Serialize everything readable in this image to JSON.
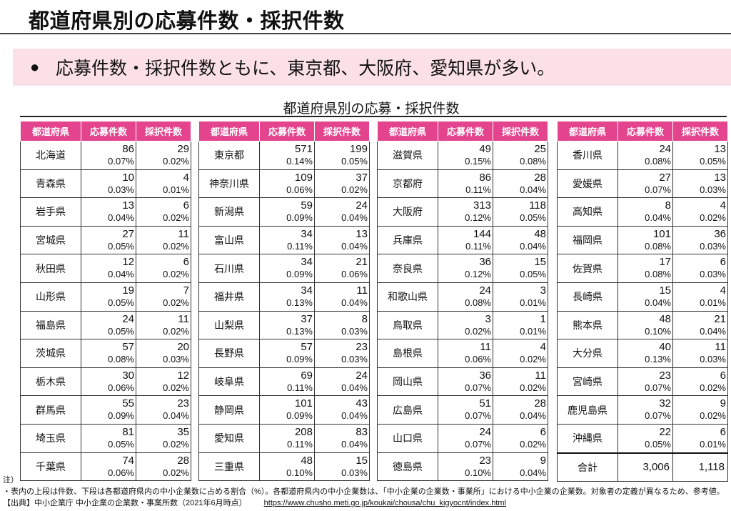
{
  "title": "都道府県別の応募件数・採択件数",
  "banner": {
    "bullet": "●",
    "text": "応募件数・採択件数ともに、東京都、大阪府、愛知県が多い。"
  },
  "subtitle": "都道府県別の応募・採択件数",
  "colors": {
    "header": "#e4448d",
    "banner": "#fbe1e7"
  },
  "headers": [
    "都道府県",
    "応募件数",
    "採択件数"
  ],
  "tables": [
    {
      "rows": [
        {
          "pref": "北海道",
          "apps": "86",
          "apps_pct": "0.07%",
          "adopted": "29",
          "adopted_pct": "0.02%"
        },
        {
          "pref": "青森県",
          "apps": "10",
          "apps_pct": "0.03%",
          "adopted": "4",
          "adopted_pct": "0.01%"
        },
        {
          "pref": "岩手県",
          "apps": "13",
          "apps_pct": "0.04%",
          "adopted": "6",
          "adopted_pct": "0.02%"
        },
        {
          "pref": "宮城県",
          "apps": "27",
          "apps_pct": "0.05%",
          "adopted": "11",
          "adopted_pct": "0.02%"
        },
        {
          "pref": "秋田県",
          "apps": "12",
          "apps_pct": "0.04%",
          "adopted": "6",
          "adopted_pct": "0.02%"
        },
        {
          "pref": "山形県",
          "apps": "19",
          "apps_pct": "0.05%",
          "adopted": "7",
          "adopted_pct": "0.02%"
        },
        {
          "pref": "福島県",
          "apps": "24",
          "apps_pct": "0.05%",
          "adopted": "11",
          "adopted_pct": "0.02%"
        },
        {
          "pref": "茨城県",
          "apps": "57",
          "apps_pct": "0.08%",
          "adopted": "20",
          "adopted_pct": "0.03%"
        },
        {
          "pref": "栃木県",
          "apps": "30",
          "apps_pct": "0.06%",
          "adopted": "12",
          "adopted_pct": "0.02%"
        },
        {
          "pref": "群馬県",
          "apps": "55",
          "apps_pct": "0.09%",
          "adopted": "23",
          "adopted_pct": "0.04%"
        },
        {
          "pref": "埼玉県",
          "apps": "81",
          "apps_pct": "0.05%",
          "adopted": "35",
          "adopted_pct": "0.02%"
        },
        {
          "pref": "千葉県",
          "apps": "74",
          "apps_pct": "0.06%",
          "adopted": "28",
          "adopted_pct": "0.02%"
        }
      ]
    },
    {
      "rows": [
        {
          "pref": "東京都",
          "apps": "571",
          "apps_pct": "0.14%",
          "adopted": "199",
          "adopted_pct": "0.05%"
        },
        {
          "pref": "神奈川県",
          "apps": "109",
          "apps_pct": "0.06%",
          "adopted": "37",
          "adopted_pct": "0.02%"
        },
        {
          "pref": "新潟県",
          "apps": "59",
          "apps_pct": "0.09%",
          "adopted": "24",
          "adopted_pct": "0.04%"
        },
        {
          "pref": "富山県",
          "apps": "34",
          "apps_pct": "0.11%",
          "adopted": "13",
          "adopted_pct": "0.04%"
        },
        {
          "pref": "石川県",
          "apps": "34",
          "apps_pct": "0.09%",
          "adopted": "21",
          "adopted_pct": "0.06%"
        },
        {
          "pref": "福井県",
          "apps": "34",
          "apps_pct": "0.13%",
          "adopted": "11",
          "adopted_pct": "0.04%"
        },
        {
          "pref": "山梨県",
          "apps": "37",
          "apps_pct": "0.13%",
          "adopted": "8",
          "adopted_pct": "0.03%"
        },
        {
          "pref": "長野県",
          "apps": "57",
          "apps_pct": "0.09%",
          "adopted": "23",
          "adopted_pct": "0.03%"
        },
        {
          "pref": "岐阜県",
          "apps": "69",
          "apps_pct": "0.11%",
          "adopted": "24",
          "adopted_pct": "0.04%"
        },
        {
          "pref": "静岡県",
          "apps": "101",
          "apps_pct": "0.09%",
          "adopted": "43",
          "adopted_pct": "0.04%"
        },
        {
          "pref": "愛知県",
          "apps": "208",
          "apps_pct": "0.11%",
          "adopted": "83",
          "adopted_pct": "0.04%"
        },
        {
          "pref": "三重県",
          "apps": "48",
          "apps_pct": "0.10%",
          "adopted": "15",
          "adopted_pct": "0.03%"
        }
      ]
    },
    {
      "rows": [
        {
          "pref": "滋賀県",
          "apps": "49",
          "apps_pct": "0.15%",
          "adopted": "25",
          "adopted_pct": "0.08%"
        },
        {
          "pref": "京都府",
          "apps": "86",
          "apps_pct": "0.11%",
          "adopted": "28",
          "adopted_pct": "0.04%"
        },
        {
          "pref": "大阪府",
          "apps": "313",
          "apps_pct": "0.12%",
          "adopted": "118",
          "adopted_pct": "0.05%"
        },
        {
          "pref": "兵庫県",
          "apps": "144",
          "apps_pct": "0.11%",
          "adopted": "48",
          "adopted_pct": "0.04%"
        },
        {
          "pref": "奈良県",
          "apps": "36",
          "apps_pct": "0.12%",
          "adopted": "15",
          "adopted_pct": "0.05%"
        },
        {
          "pref": "和歌山県",
          "apps": "24",
          "apps_pct": "0.08%",
          "adopted": "3",
          "adopted_pct": "0.01%"
        },
        {
          "pref": "鳥取県",
          "apps": "3",
          "apps_pct": "0.02%",
          "adopted": "1",
          "adopted_pct": "0.01%"
        },
        {
          "pref": "島根県",
          "apps": "11",
          "apps_pct": "0.06%",
          "adopted": "4",
          "adopted_pct": "0.02%"
        },
        {
          "pref": "岡山県",
          "apps": "36",
          "apps_pct": "0.07%",
          "adopted": "11",
          "adopted_pct": "0.02%"
        },
        {
          "pref": "広島県",
          "apps": "51",
          "apps_pct": "0.07%",
          "adopted": "28",
          "adopted_pct": "0.04%"
        },
        {
          "pref": "山口県",
          "apps": "24",
          "apps_pct": "0.07%",
          "adopted": "6",
          "adopted_pct": "0.02%"
        },
        {
          "pref": "徳島県",
          "apps": "23",
          "apps_pct": "0.10%",
          "adopted": "9",
          "adopted_pct": "0.04%"
        }
      ]
    },
    {
      "rows": [
        {
          "pref": "香川県",
          "apps": "24",
          "apps_pct": "0.08%",
          "adopted": "13",
          "adopted_pct": "0.05%"
        },
        {
          "pref": "愛媛県",
          "apps": "27",
          "apps_pct": "0.07%",
          "adopted": "13",
          "adopted_pct": "0.03%"
        },
        {
          "pref": "高知県",
          "apps": "8",
          "apps_pct": "0.04%",
          "adopted": "4",
          "adopted_pct": "0.02%"
        },
        {
          "pref": "福岡県",
          "apps": "101",
          "apps_pct": "0.08%",
          "adopted": "36",
          "adopted_pct": "0.03%"
        },
        {
          "pref": "佐賀県",
          "apps": "17",
          "apps_pct": "0.08%",
          "adopted": "6",
          "adopted_pct": "0.03%"
        },
        {
          "pref": "長崎県",
          "apps": "15",
          "apps_pct": "0.04%",
          "adopted": "4",
          "adopted_pct": "0.01%"
        },
        {
          "pref": "熊本県",
          "apps": "48",
          "apps_pct": "0.10%",
          "adopted": "21",
          "adopted_pct": "0.04%"
        },
        {
          "pref": "大分県",
          "apps": "40",
          "apps_pct": "0.13%",
          "adopted": "11",
          "adopted_pct": "0.03%"
        },
        {
          "pref": "宮崎県",
          "apps": "23",
          "apps_pct": "0.07%",
          "adopted": "6",
          "adopted_pct": "0.02%"
        },
        {
          "pref": "鹿児島県",
          "apps": "32",
          "apps_pct": "0.07%",
          "adopted": "9",
          "adopted_pct": "0.02%"
        },
        {
          "pref": "沖縄県",
          "apps": "22",
          "apps_pct": "0.05%",
          "adopted": "6",
          "adopted_pct": "0.01%"
        }
      ],
      "total": {
        "label": "合計",
        "apps": "3,006",
        "adopted": "1,118"
      }
    }
  ],
  "notes": {
    "heading": "注）",
    "line1": "・表内の上段は件数、下段は各都道府県内の中小企業数に占める割合（%）。各都道府県内の中小企業数は、「中小企業の企業数・事業所」における中小企業の企業数。対象者の定義が異なるため、参考値。",
    "source": "【出典】中小企業庁 中小企業の企業数・事業所数（2021年6月時点）",
    "url": "https://www.chusho.meti.go.jp/koukai/chousa/chu_kigyocnt/index.html"
  }
}
